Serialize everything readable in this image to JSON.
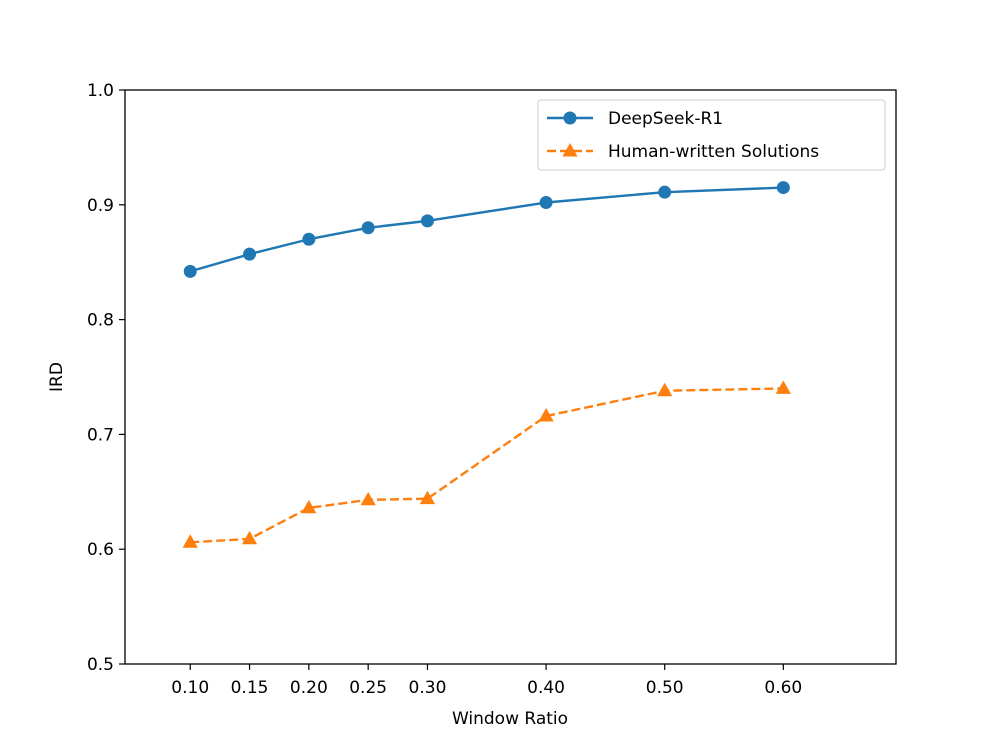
{
  "chart_data": {
    "type": "line",
    "title": "",
    "xlabel": "Window Ratio",
    "ylabel": "IRD",
    "x": [
      0.1,
      0.15,
      0.2,
      0.25,
      0.3,
      0.4,
      0.5,
      0.6
    ],
    "x_tick_labels": [
      "0.10",
      "0.15",
      "0.20",
      "0.25",
      "0.30",
      "0.40",
      "0.50",
      "0.60"
    ],
    "xlim": [
      0.045,
      0.695
    ],
    "ylim": [
      0.5,
      1.0
    ],
    "y_ticks": [
      0.5,
      0.6,
      0.7,
      0.8,
      0.9,
      1.0
    ],
    "y_tick_labels": [
      "0.5",
      "0.6",
      "0.7",
      "0.8",
      "0.9",
      "1.0"
    ],
    "grid": false,
    "legend_position": "top-right",
    "series": [
      {
        "name": "DeepSeek-R1",
        "color": "#1f77b4",
        "line_style": "solid",
        "marker": "circle",
        "values": [
          0.842,
          0.857,
          0.87,
          0.88,
          0.886,
          0.902,
          0.911,
          0.915
        ]
      },
      {
        "name": "Human-written Solutions",
        "color": "#ff7f0e",
        "line_style": "dashed",
        "marker": "triangle",
        "values": [
          0.606,
          0.609,
          0.636,
          0.643,
          0.644,
          0.716,
          0.738,
          0.74
        ]
      }
    ]
  }
}
